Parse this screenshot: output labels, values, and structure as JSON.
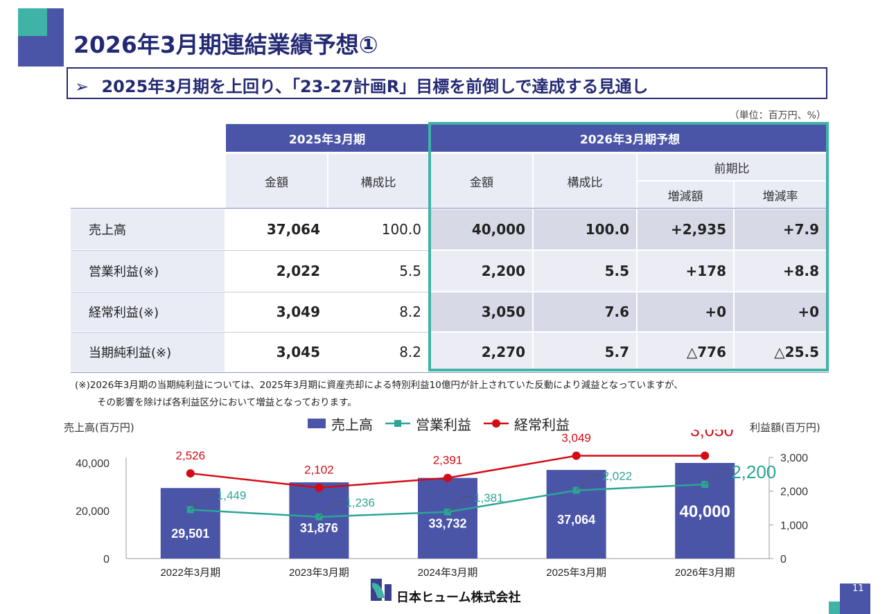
{
  "title": "2026年3月期連結業績予想①",
  "subtitle": "2025年3月期を上回り、「23-27計画R」目標を前倒しで達成する見通し",
  "subtitle_marker": "➢",
  "unit_note": "（単位：百万円、%）",
  "table": {
    "group_prev": "2025年3月期",
    "group_forecast": "2026年3月期予想",
    "col_amount": "金額",
    "col_ratio": "構成比",
    "col_yoy": "前期比",
    "col_change_amount": "増減額",
    "col_change_rate": "増減率",
    "rows": [
      {
        "label": "売上高",
        "prev_amount": "37,064",
        "prev_ratio": "100.0",
        "amount": "40,000",
        "ratio": "100.0",
        "change": "+2,935",
        "rate": "+7.9"
      },
      {
        "label": "営業利益(※)",
        "prev_amount": "2,022",
        "prev_ratio": "5.5",
        "amount": "2,200",
        "ratio": "5.5",
        "change": "+178",
        "rate": "+8.8"
      },
      {
        "label": "経常利益(※)",
        "prev_amount": "3,049",
        "prev_ratio": "8.2",
        "amount": "3,050",
        "ratio": "7.6",
        "change": "+0",
        "rate": "+0"
      },
      {
        "label": "当期純利益(※)",
        "prev_amount": "3,045",
        "prev_ratio": "8.2",
        "amount": "2,270",
        "ratio": "5.7",
        "change": "△776",
        "rate": "△25.5"
      }
    ]
  },
  "footnote_line1": "(※)2026年3月期の当期純利益については、2025年3月期に資産売却による特別利益10億円が計上されていた反動により減益となっていますが、",
  "footnote_line2": "その影響を除けば各利益区分において増益となっております。",
  "chart_data": {
    "type": "bar",
    "categories": [
      "2022年3月期",
      "2023年3月期",
      "2024年3月期",
      "2025年3月期",
      "2026年3月期"
    ],
    "y_left_label": "売上高(百万円)",
    "y_right_label": "利益額(百万円)",
    "y_left_ticks": [
      "0",
      "20,000",
      "40,000"
    ],
    "y_left_lim": [
      0,
      40000
    ],
    "y_right_ticks": [
      "0",
      "1,000",
      "2,000",
      "3,000"
    ],
    "y_right_lim": [
      0,
      3000
    ],
    "series": [
      {
        "name": "売上高",
        "type": "bar",
        "axis": "left",
        "color": "#4a55a8",
        "values": [
          29501,
          31876,
          33732,
          37064,
          40000
        ],
        "labels": [
          "29,501",
          "31,876",
          "33,732",
          "37,064",
          "40,000"
        ]
      },
      {
        "name": "営業利益",
        "type": "line",
        "axis": "right",
        "color": "#2aa595",
        "values": [
          1449,
          1236,
          1381,
          2022,
          2200
        ],
        "labels": [
          "1,449",
          "1,236",
          "1,381",
          "2,022",
          "2,200"
        ]
      },
      {
        "name": "経常利益",
        "type": "line",
        "axis": "right",
        "color": "#d40b14",
        "values": [
          2526,
          2102,
          2391,
          3049,
          3050
        ],
        "labels": [
          "2,526",
          "2,102",
          "2,391",
          "3,049",
          "3,050"
        ]
      }
    ]
  },
  "company_name": "日本ヒューム株式会社",
  "page_number": "11"
}
